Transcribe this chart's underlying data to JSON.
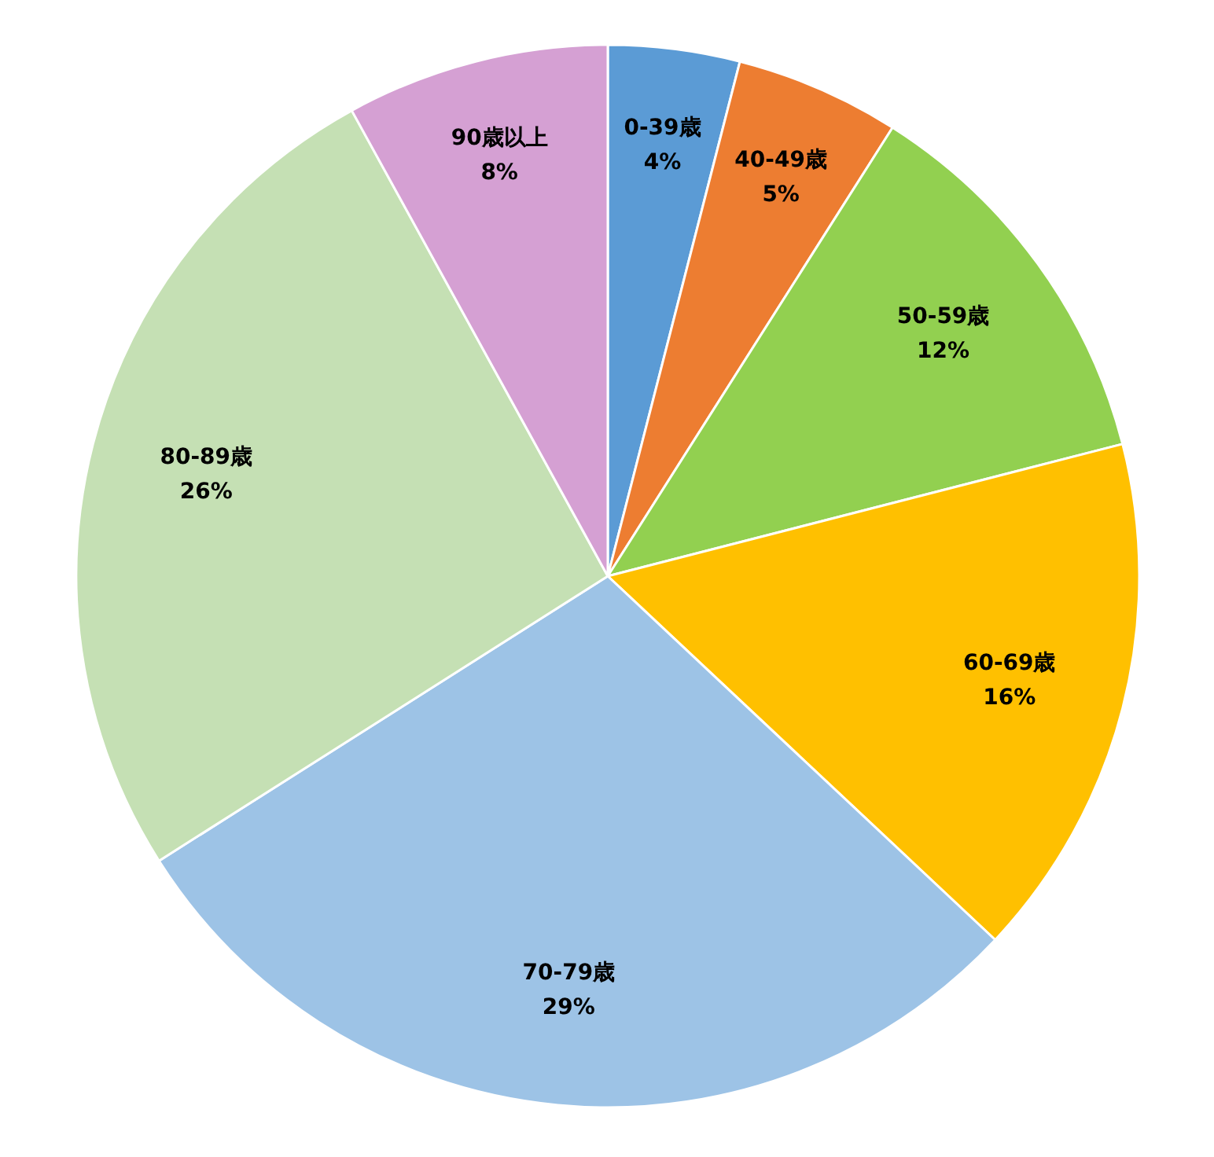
{
  "chart_data": {
    "type": "pie",
    "categories": [
      "0-39歳",
      "40-49歳",
      "50-59歳",
      "60-69歳",
      "70-79歳",
      "80-89歳",
      "90歳以上"
    ],
    "values": [
      4,
      5,
      12,
      16,
      29,
      26,
      8
    ],
    "value_labels": [
      "4%",
      "5%",
      "12%",
      "16%",
      "29%",
      "26%",
      "8%"
    ],
    "colors": [
      "#5b9bd5",
      "#ed7d31",
      "#92d050",
      "#ffc000",
      "#9dc3e6",
      "#c5e0b4",
      "#d5a0d3"
    ]
  }
}
